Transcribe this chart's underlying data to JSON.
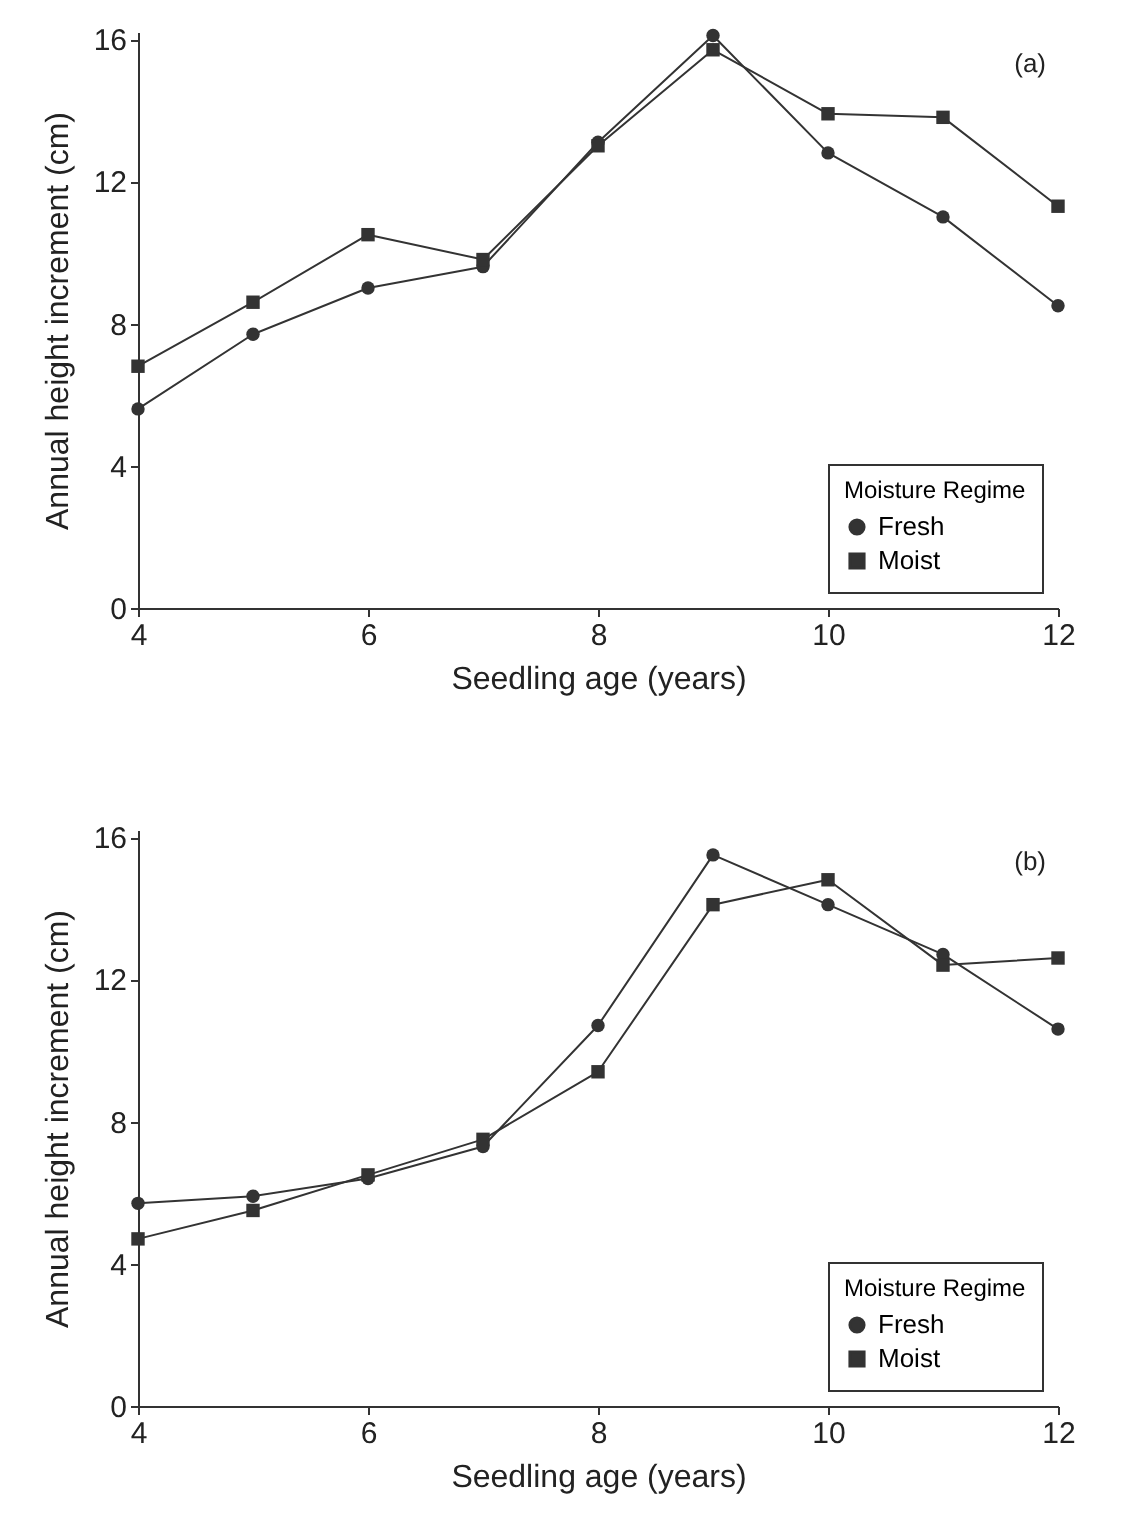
{
  "chart_data": [
    {
      "type": "line",
      "xlabel": "Seedling age (years)",
      "ylabel": "Annual height increment (cm)",
      "legend_title": "Moisture Regime",
      "annotations": [
        "(a)"
      ],
      "x": [
        4,
        5,
        6,
        7,
        8,
        9,
        10,
        11,
        12
      ],
      "xlim": [
        4,
        12
      ],
      "xticks": [
        4,
        6,
        8,
        10,
        12
      ],
      "ylim": [
        0,
        16.2
      ],
      "yticks": [
        0,
        4,
        8,
        12,
        16
      ],
      "grid": false,
      "legend": "bottom right",
      "line_style": "solid",
      "series": [
        {
          "name": "Fresh",
          "color": "#333333",
          "marker": "circle",
          "values": [
            5.6,
            7.7,
            9.0,
            9.6,
            13.1,
            16.1,
            12.8,
            11.0,
            8.5
          ]
        },
        {
          "name": "Moist",
          "color": "#333333",
          "marker": "square",
          "values": [
            6.8,
            8.6,
            10.5,
            9.8,
            13.0,
            15.7,
            13.9,
            13.8,
            11.3
          ]
        }
      ]
    },
    {
      "type": "line",
      "xlabel": "Seedling age (years)",
      "ylabel": "Annual height increment (cm)",
      "legend_title": "Moisture Regime",
      "annotations": [
        "(b)"
      ],
      "x": [
        4,
        5,
        6,
        7,
        8,
        9,
        10,
        11,
        12
      ],
      "xlim": [
        4,
        12
      ],
      "xticks": [
        4,
        6,
        8,
        10,
        12
      ],
      "ylim": [
        0,
        16.2
      ],
      "yticks": [
        0,
        4,
        8,
        12,
        16
      ],
      "grid": false,
      "legend": "bottom right",
      "line_style": "solid",
      "series": [
        {
          "name": "Fresh",
          "color": "#333333",
          "marker": "circle",
          "values": [
            5.7,
            5.9,
            6.4,
            7.3,
            10.7,
            15.5,
            14.1,
            12.7,
            10.6
          ]
        },
        {
          "name": "Moist",
          "color": "#333333",
          "marker": "square",
          "values": [
            4.7,
            5.5,
            6.5,
            7.5,
            9.4,
            14.1,
            14.8,
            12.4,
            12.6
          ]
        }
      ]
    }
  ]
}
